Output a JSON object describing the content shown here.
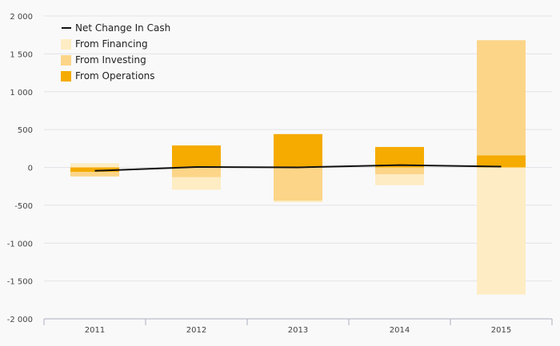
{
  "chart_data": {
    "type": "bar",
    "title": "",
    "xlabel": "",
    "ylabel": "",
    "categories": [
      "2011",
      "2012",
      "2013",
      "2014",
      "2015"
    ],
    "ylim": [
      -2000,
      2000
    ],
    "y_ticks": [
      2000,
      1500,
      1000,
      500,
      0,
      -500,
      -1000,
      -1500,
      -2000
    ],
    "y_tick_labels": [
      "2 000",
      "1 500",
      "1 000",
      "500",
      "0",
      "-500",
      "-1 000",
      "-1 500",
      "-2 000"
    ],
    "stacked": true,
    "grid": true,
    "legend_position": "top-left",
    "series": [
      {
        "name": "From Operations",
        "kind": "bar",
        "color": "#f5ab00",
        "values": [
          -60,
          290,
          440,
          270,
          160
        ]
      },
      {
        "name": "From Investing",
        "kind": "bar",
        "color": "#fcd588",
        "values": [
          -60,
          -130,
          -440,
          -90,
          1520
        ]
      },
      {
        "name": "From Financing",
        "kind": "bar",
        "color": "#feecc4",
        "values": [
          55,
          -165,
          -20,
          -145,
          -1680
        ]
      },
      {
        "name": "Net Change In Cash",
        "kind": "line",
        "color": "#111111",
        "values": [
          -45,
          5,
          0,
          30,
          10
        ]
      }
    ],
    "legend_order": [
      "Net Change In Cash",
      "From Financing",
      "From Investing",
      "From Operations"
    ]
  }
}
